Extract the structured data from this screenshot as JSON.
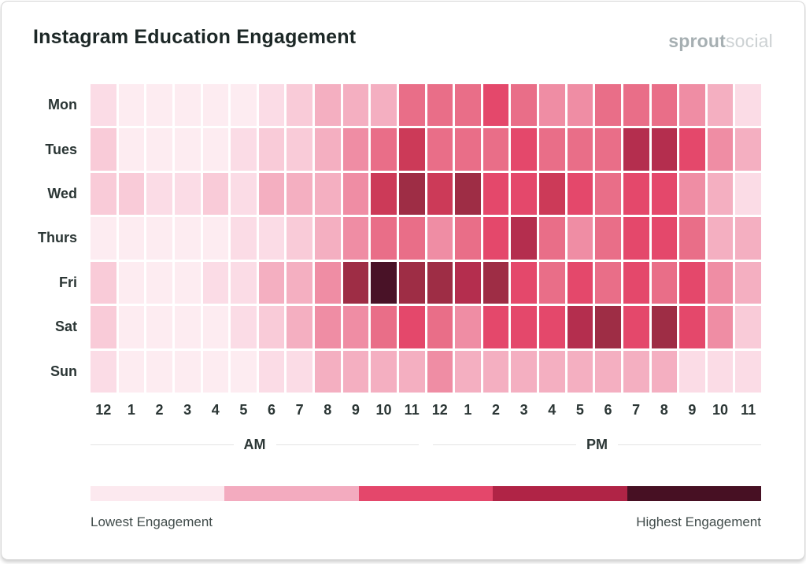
{
  "header": {
    "title": "Instagram Education Engagement",
    "logo_bold": "sprout",
    "logo_light": "social"
  },
  "chart_data": {
    "type": "heatmap",
    "title": "Instagram Education Engagement",
    "rows": [
      "Mon",
      "Tues",
      "Wed",
      "Thurs",
      "Fri",
      "Sat",
      "Sun"
    ],
    "columns": [
      "12",
      "1",
      "2",
      "3",
      "4",
      "5",
      "6",
      "7",
      "8",
      "9",
      "10",
      "11",
      "12",
      "1",
      "2",
      "3",
      "4",
      "5",
      "6",
      "7",
      "8",
      "9",
      "10",
      "11"
    ],
    "column_groups": [
      {
        "label": "AM",
        "span": 12
      },
      {
        "label": "PM",
        "span": 12
      }
    ],
    "value_scale": "engagement level, 0 = lowest to 10 = highest",
    "values": [
      [
        1,
        0,
        0,
        0,
        0,
        0,
        1,
        2,
        3,
        3,
        3,
        5,
        5,
        5,
        6,
        5,
        4,
        4,
        5,
        5,
        5,
        4,
        3,
        1
      ],
      [
        2,
        0,
        0,
        0,
        0,
        1,
        2,
        2,
        3,
        4,
        5,
        7,
        5,
        5,
        5,
        6,
        5,
        5,
        5,
        8,
        8,
        6,
        4,
        3
      ],
      [
        2,
        2,
        1,
        1,
        2,
        1,
        3,
        3,
        3,
        4,
        7,
        9,
        7,
        9,
        6,
        6,
        7,
        6,
        5,
        6,
        6,
        4,
        3,
        1
      ],
      [
        0,
        0,
        0,
        0,
        0,
        1,
        1,
        2,
        3,
        4,
        5,
        5,
        4,
        5,
        6,
        8,
        5,
        4,
        5,
        6,
        6,
        5,
        3,
        3
      ],
      [
        2,
        0,
        0,
        0,
        1,
        1,
        3,
        3,
        4,
        9,
        10,
        9,
        9,
        8,
        9,
        6,
        5,
        6,
        5,
        6,
        5,
        6,
        4,
        3
      ],
      [
        2,
        0,
        0,
        0,
        0,
        1,
        2,
        3,
        4,
        4,
        5,
        6,
        5,
        4,
        6,
        6,
        6,
        8,
        9,
        6,
        9,
        6,
        4,
        2
      ],
      [
        1,
        0,
        0,
        0,
        0,
        0,
        1,
        1,
        3,
        3,
        3,
        3,
        4,
        3,
        3,
        3,
        3,
        3,
        3,
        3,
        3,
        1,
        1,
        1
      ]
    ],
    "palette": [
      "#fdecf1",
      "#fbdce6",
      "#f9cbd8",
      "#f4afc1",
      "#ef8da4",
      "#e96e88",
      "#e4486b",
      "#cc3a58",
      "#b42e4e",
      "#9e2d45",
      "#491227"
    ],
    "grid_gap_color": "#ffffff",
    "legend": {
      "position": "bottom",
      "colors": [
        "#fce9ef",
        "#f3abbf",
        "#e4476b",
        "#b02446",
        "#471023"
      ],
      "low_label": "Lowest Engagement",
      "high_label": "Highest Engagement"
    }
  }
}
